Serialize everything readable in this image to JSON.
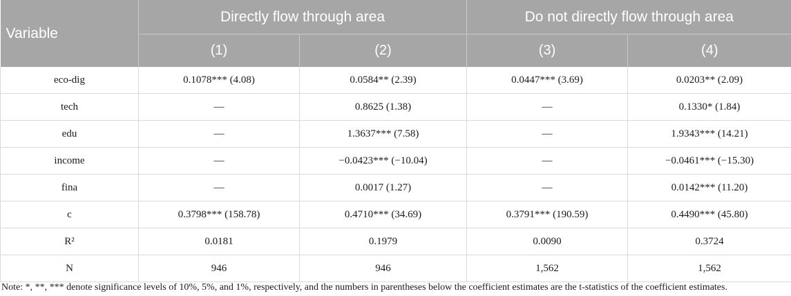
{
  "header": {
    "variable": "Variable",
    "group1": "Directly flow through area",
    "group2": "Do not directly flow through area",
    "cols": [
      "(1)",
      "(2)",
      "(3)",
      "(4)"
    ]
  },
  "rows": [
    {
      "label": "eco-dig",
      "cells": [
        "0.1078*** (4.08)",
        "0.0584** (2.39)",
        "0.0447*** (3.69)",
        "0.0203** (2.09)"
      ]
    },
    {
      "label": "tech",
      "cells": [
        "—",
        "0.8625 (1.38)",
        "—",
        "0.1330* (1.84)"
      ]
    },
    {
      "label": "edu",
      "cells": [
        "—",
        "1.3637*** (7.58)",
        "—",
        "1.9343*** (14.21)"
      ]
    },
    {
      "label": "income",
      "cells": [
        "—",
        "−0.0423*** (−10.04)",
        "—",
        "−0.0461*** (−15.30)"
      ]
    },
    {
      "label": "fina",
      "cells": [
        "—",
        "0.0017 (1.27)",
        "—",
        "0.0142*** (11.20)"
      ]
    },
    {
      "label": "c",
      "cells": [
        "0.3798*** (158.78)",
        "0.4710*** (34.69)",
        "0.3791*** (190.59)",
        "0.4490*** (45.80)"
      ]
    },
    {
      "label": "R²",
      "cells": [
        "0.0181",
        "0.1979",
        "0.0090",
        "0.3724"
      ]
    },
    {
      "label": "N",
      "cells": [
        "946",
        "946",
        "1,562",
        "1,562"
      ]
    }
  ],
  "note": "Note: *, **, *** denote significance levels of 10%, 5%, and 1%, respectively, and the numbers in parentheses below the coefficient estimates are the t-statistics of the coefficient estimates."
}
